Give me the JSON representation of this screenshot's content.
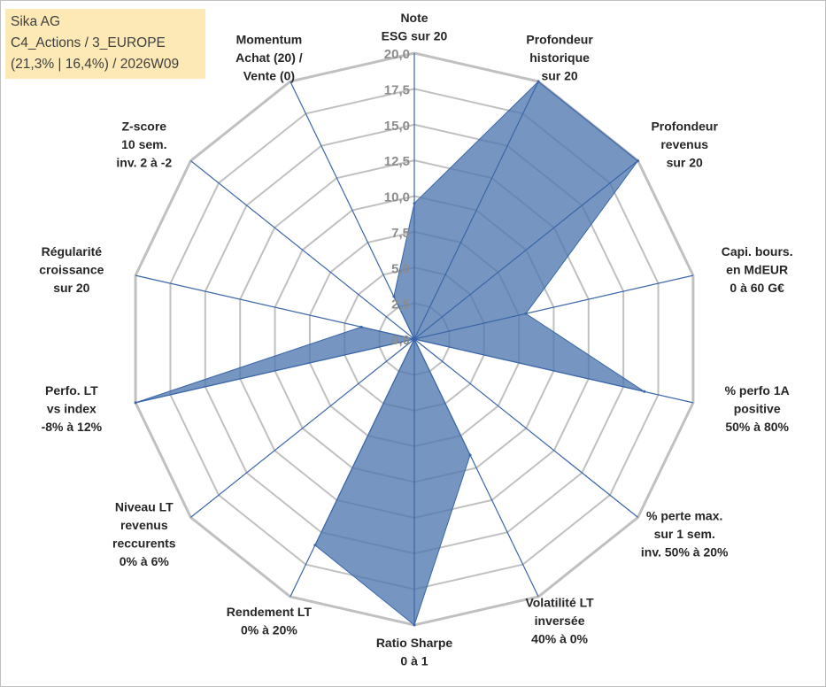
{
  "info_box": {
    "line1": "Sika AG",
    "line2": "C4_Actions / 3_EUROPE",
    "line3": "(21,3% | 16,4%) / 2026W09"
  },
  "chart_data": {
    "type": "radar",
    "title": "",
    "range": [
      0,
      20
    ],
    "ticks": [
      "0,0",
      "2,5",
      "5,0",
      "7,5",
      "10,0",
      "12,5",
      "15,0",
      "17,5",
      "20,0"
    ],
    "gridlines": true,
    "axes": [
      {
        "label": [
          "Note",
          "ESG sur 20"
        ]
      },
      {
        "label": [
          "Profondeur",
          "historique",
          "sur 20"
        ]
      },
      {
        "label": [
          "Profondeur",
          "revenus",
          "sur 20"
        ]
      },
      {
        "label": [
          "Capi. bours.",
          "en MdEUR",
          "0 à 60 G€"
        ]
      },
      {
        "label": [
          "% perfo 1A",
          "positive",
          "50% à 80%"
        ]
      },
      {
        "label": [
          "% perte max.",
          "sur 1 sem.",
          "inv. 50% à 20%"
        ]
      },
      {
        "label": [
          "Volatilité LT",
          "inversée",
          "40% à 0%"
        ]
      },
      {
        "label": [
          "Ratio Sharpe",
          "0 à 1"
        ]
      },
      {
        "label": [
          "Rendement LT",
          "0% à 20%"
        ]
      },
      {
        "label": [
          "Niveau LT",
          "revenus",
          "reccurents",
          "0% à 6%"
        ]
      },
      {
        "label": [
          "Perfo. LT",
          "vs index",
          "-8% à 12%"
        ]
      },
      {
        "label": [
          "Régularité",
          "croissance",
          "sur 20"
        ]
      },
      {
        "label": [
          "Z-score",
          "10 sem.",
          "inv. 2 à -2"
        ]
      },
      {
        "label": [
          "Momentum",
          "Achat (20) /",
          "Vente (0)"
        ]
      }
    ],
    "series": [
      {
        "values": [
          9.5,
          20.0,
          20.0,
          8.0,
          16.5,
          0.0,
          9.0,
          20.0,
          16.0,
          0.0,
          20.0,
          3.8,
          0.0,
          3.3
        ]
      }
    ],
    "colors": {
      "fill": "#4f79b0",
      "stroke": "#3a66a8",
      "grid": "#c0c0c0",
      "spoke": "#3a66a8"
    }
  }
}
